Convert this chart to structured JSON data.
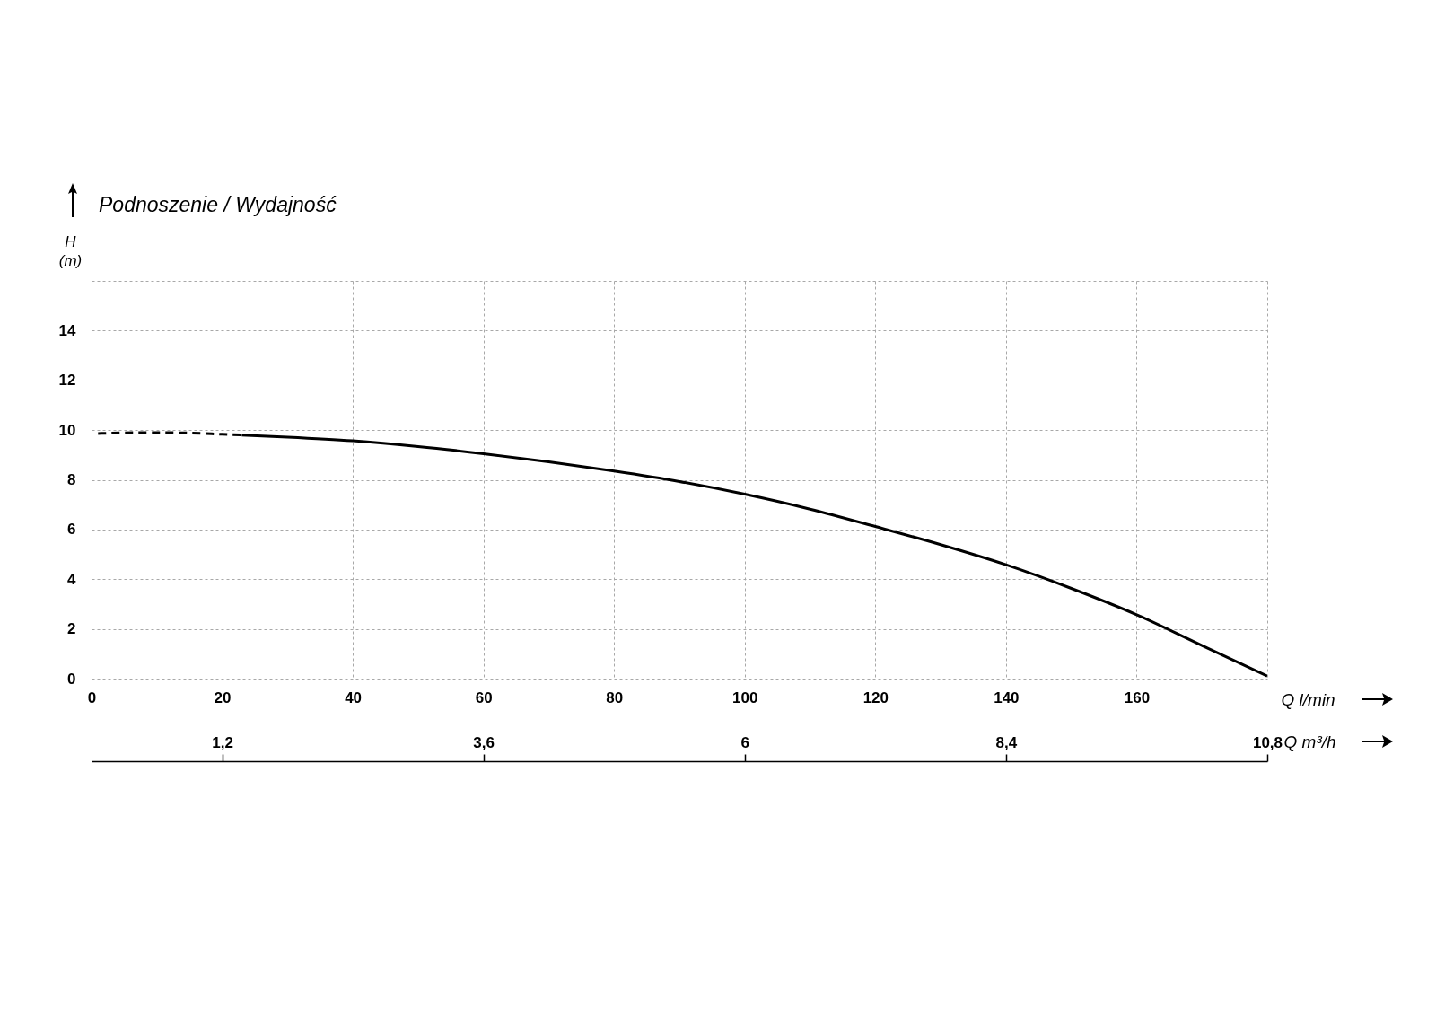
{
  "chart_data": {
    "type": "line",
    "title": "Podnoszenie / Wydajność",
    "xlabel": "Q l/min",
    "x2label": "Q m³/h",
    "ylabel": "H (m)",
    "xlim": [
      0,
      180
    ],
    "xticks": [
      0,
      20,
      40,
      60,
      80,
      100,
      120,
      140,
      160,
      {
        "value": 180,
        "label": null
      }
    ],
    "x2lim": [
      0,
      10.8
    ],
    "x2ticks": [
      {
        "value": 1.2,
        "label": "1,2"
      },
      {
        "value": 3.6,
        "label": "3,6"
      },
      6,
      {
        "value": 8.4,
        "label": "8,4"
      },
      {
        "value": 10.8,
        "label": "10,8"
      }
    ],
    "ylim": [
      0,
      16
    ],
    "yticks": [
      0,
      2,
      4,
      6,
      8,
      10,
      12,
      14,
      {
        "value": 16,
        "label": null
      }
    ],
    "grid": true,
    "series": [
      {
        "color": "#000000",
        "line_style": "dashed",
        "x": [
          1,
          5,
          10,
          15,
          20,
          23
        ],
        "values": [
          9.86,
          9.89,
          9.9,
          9.88,
          9.83,
          9.8
        ]
      },
      {
        "color": "#000000",
        "line_style": "solid",
        "x": [
          23,
          30,
          40,
          50,
          60,
          70,
          80,
          90,
          100,
          110,
          120,
          130,
          140,
          150,
          160,
          170,
          180
        ],
        "values": [
          9.8,
          9.72,
          9.57,
          9.34,
          9.05,
          8.72,
          8.35,
          7.93,
          7.42,
          6.82,
          6.12,
          5.39,
          4.58,
          3.63,
          2.57,
          1.33,
          0.1
        ]
      }
    ]
  }
}
